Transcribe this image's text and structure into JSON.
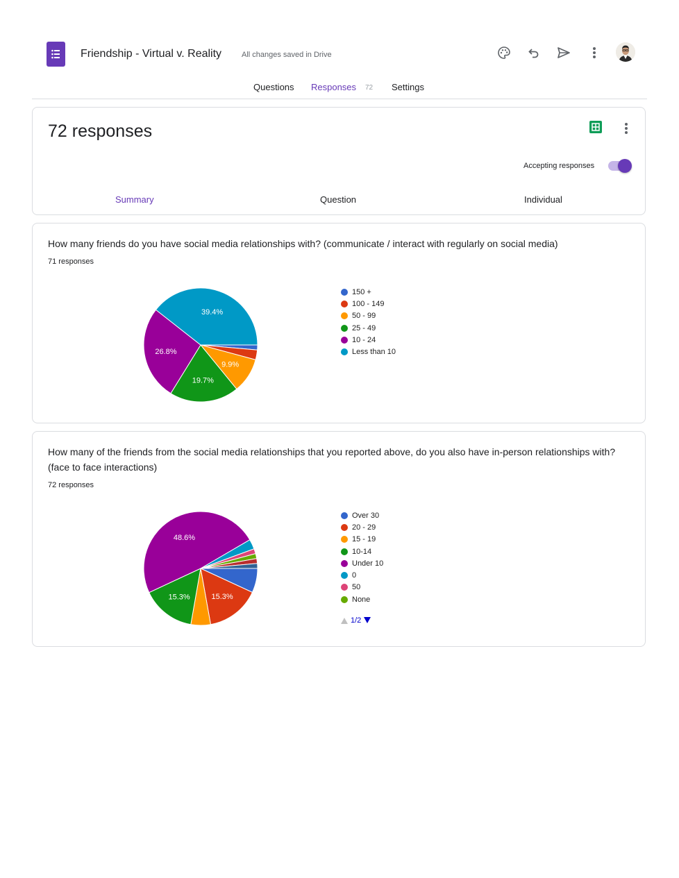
{
  "app": {
    "doc_title": "Friendship - Virtual v. Reality",
    "save_status": "All changes saved in Drive"
  },
  "header_icons": [
    "palette-icon",
    "undo-icon",
    "send-icon",
    "more-vert-icon",
    "avatar"
  ],
  "tabs": [
    {
      "label": "Questions",
      "active": false
    },
    {
      "label": "Responses",
      "active": true,
      "count": "72"
    },
    {
      "label": "Settings",
      "active": false
    }
  ],
  "summary_card": {
    "title": "72 responses",
    "accepting_label": "Accepting responses",
    "accepting": true,
    "subtabs": [
      {
        "label": "Summary",
        "active": true
      },
      {
        "label": "Question",
        "active": false
      },
      {
        "label": "Individual",
        "active": false
      }
    ]
  },
  "questions": [
    {
      "text": "How many friends do you have social media relationships with? (communicate / interact with regularly on social media)",
      "response_count": "71 responses"
    },
    {
      "text": "How many of the friends from the social media relationships that you reported above, do you also have in-person relationships with? (face to face interactions)",
      "response_count": "72 responses",
      "pager": "1/2"
    }
  ],
  "chart_data": [
    {
      "type": "pie",
      "categories": [
        "150 +",
        "100 - 149",
        "50 - 99",
        "25 - 49",
        "10 - 24",
        "Less than 10"
      ],
      "values": [
        1.4,
        2.8,
        9.9,
        19.7,
        26.8,
        39.4
      ],
      "colors": [
        "#3366cc",
        "#dc3912",
        "#ff9900",
        "#109618",
        "#990099",
        "#0099c6"
      ],
      "data_labels": [
        "",
        "",
        "9.9%",
        "19.7%",
        "26.8%",
        "39.4%"
      ]
    },
    {
      "type": "pie",
      "categories": [
        "Over 30",
        "20 - 29",
        "15 - 19",
        "10-14",
        "Under 10",
        "0",
        "50",
        "None",
        "",
        "",
        "",
        ""
      ],
      "legend_categories": [
        "Over 30",
        "20 - 29",
        "15 - 19",
        "10-14",
        "Under 10",
        "0",
        "50",
        "None"
      ],
      "values": [
        6.9,
        15.3,
        5.6,
        15.3,
        48.6,
        2.8,
        1.4,
        1.4,
        1.4,
        1.4,
        0,
        0
      ],
      "colors": [
        "#3366cc",
        "#dc3912",
        "#ff9900",
        "#109618",
        "#990099",
        "#0099c6",
        "#dd4477",
        "#66aa00",
        "#b82e2e",
        "#316395",
        "#994499",
        "#22aa99"
      ],
      "data_labels": [
        "",
        "15.3%",
        "",
        "15.3%",
        "48.6%",
        "",
        "",
        "",
        "",
        "",
        "",
        ""
      ]
    }
  ]
}
